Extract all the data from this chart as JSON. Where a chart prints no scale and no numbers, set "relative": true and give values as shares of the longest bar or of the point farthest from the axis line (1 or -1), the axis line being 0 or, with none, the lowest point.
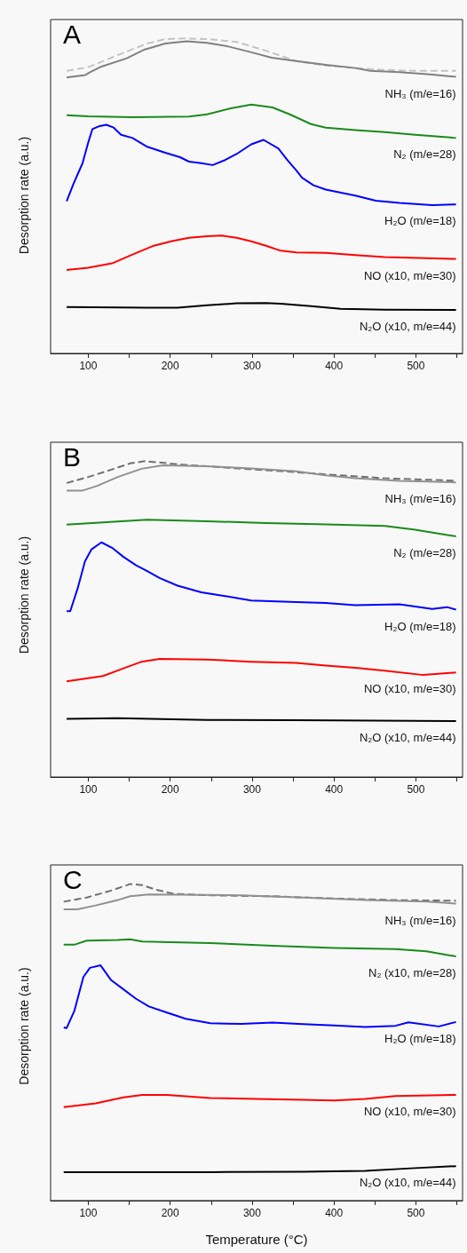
{
  "chart_data": [
    {
      "type": "line",
      "title": "A",
      "ylabel": "Desorption rate (a.u.)",
      "relative": true,
      "xlim": [
        54,
        557
      ],
      "xticks": [
        100,
        {
          "value": 150,
          "label": null
        },
        200,
        {
          "value": 250,
          "label": null
        },
        300,
        {
          "value": 350,
          "label": null
        },
        400,
        {
          "value": 450,
          "label": null
        },
        500,
        {
          "value": 550,
          "label": null
        }
      ],
      "grid": false,
      "marker": "none",
      "line_style": "solid",
      "series": [
        {
          "color": "#c4c4c4",
          "line_style": "dashed",
          "x": [
            73.6,
            100,
            136,
            172,
            194,
            216,
            245,
            281,
            317,
            354,
            390,
            426,
            462,
            499,
            549
          ],
          "values": [
            0.897,
            0.909,
            0.947,
            0.984,
            0.998,
            1.0,
            0.998,
            0.989,
            0.961,
            0.928,
            0.914,
            0.906,
            0.9,
            0.897,
            0.897
          ]
        },
        {
          "name": "NH₃ (m/e=16)",
          "color": "#808080",
          "x": [
            73.6,
            96.4,
            103.6,
            114.5,
            147,
            169,
            194,
            220,
            245,
            270,
            299,
            324,
            354,
            390,
            426,
            444,
            480,
            517,
            549
          ],
          "values": [
            0.876,
            0.884,
            0.895,
            0.909,
            0.937,
            0.965,
            0.984,
            0.991,
            0.986,
            0.975,
            0.956,
            0.939,
            0.928,
            0.916,
            0.906,
            0.897,
            0.893,
            0.886,
            0.878
          ]
        },
        {
          "name": "N₂ (m/e=28)",
          "color": "#1a8a1a",
          "x": [
            73.6,
            100,
            154,
            223,
            245,
            274,
            299,
            325,
            346,
            372,
            390,
            426,
            462,
            499,
            549
          ],
          "values": [
            0.756,
            0.753,
            0.75,
            0.752,
            0.759,
            0.778,
            0.79,
            0.781,
            0.759,
            0.728,
            0.717,
            0.709,
            0.703,
            0.694,
            0.684
          ]
        },
        {
          "name": "H₂O (m/e=18)",
          "color": "#0000ff",
          "x": [
            73.6,
            82,
            93,
            100,
            105,
            114,
            122,
            131,
            140,
            154,
            172,
            194,
            212,
            223,
            238,
            252,
            267,
            281,
            299,
            314,
            332,
            343,
            354,
            361,
            375,
            390,
            426,
            451,
            480,
            520,
            549
          ],
          "values": [
            0.483,
            0.539,
            0.604,
            0.67,
            0.712,
            0.722,
            0.726,
            0.717,
            0.694,
            0.684,
            0.656,
            0.637,
            0.623,
            0.609,
            0.604,
            0.598,
            0.614,
            0.633,
            0.664,
            0.678,
            0.651,
            0.614,
            0.581,
            0.558,
            0.534,
            0.52,
            0.501,
            0.485,
            0.478,
            0.471,
            0.473
          ]
        },
        {
          "name": "NO (x10, m/e=30)",
          "color": "#ff0000",
          "x": [
            73.6,
            100,
            129,
            154,
            180,
            201,
            223,
            245,
            263,
            281,
            299,
            317,
            335,
            354,
            390,
            426,
            462,
            549
          ],
          "values": [
            0.265,
            0.272,
            0.286,
            0.314,
            0.342,
            0.356,
            0.367,
            0.372,
            0.374,
            0.367,
            0.356,
            0.342,
            0.326,
            0.321,
            0.319,
            0.312,
            0.306,
            0.3
          ]
        },
        {
          "name": "N₂O (x10, m/e=44)",
          "color": "#000000",
          "x": [
            73.6,
            172,
            209,
            245,
            281,
            317,
            335,
            372,
            408,
            462,
            549
          ],
          "values": [
            0.147,
            0.145,
            0.145,
            0.153,
            0.159,
            0.16,
            0.158,
            0.15,
            0.142,
            0.139,
            0.138
          ]
        }
      ]
    },
    {
      "type": "line",
      "title": "B",
      "ylabel": "Desorption rate (a.u.)",
      "relative": true,
      "xlim": [
        54,
        557
      ],
      "xticks": [
        100,
        {
          "value": 150,
          "label": null
        },
        200,
        {
          "value": 250,
          "label": null
        },
        300,
        {
          "value": 350,
          "label": null
        },
        400,
        {
          "value": 450,
          "label": null
        },
        500,
        {
          "value": 550,
          "label": null
        }
      ],
      "grid": false,
      "marker": "none",
      "line_style": "solid",
      "series": [
        {
          "color": "#707070",
          "line_style": "dashed",
          "x": [
            73.6,
            100,
            129,
            151,
            169,
            187,
            209,
            245,
            299,
            354,
            408,
            462,
            517,
            549
          ],
          "values": [
            0.931,
            0.95,
            0.974,
            0.993,
            1.0,
            0.996,
            0.99,
            0.984,
            0.974,
            0.965,
            0.955,
            0.946,
            0.941,
            0.938
          ]
        },
        {
          "name": "NH₃ (m/e=16)",
          "color": "#909090",
          "x": [
            73.6,
            93,
            111,
            136,
            165,
            191,
            245,
            299,
            354,
            390,
            426,
            480,
            549
          ],
          "values": [
            0.907,
            0.907,
            0.922,
            0.95,
            0.976,
            0.987,
            0.984,
            0.977,
            0.968,
            0.955,
            0.946,
            0.938,
            0.933
          ]
        },
        {
          "name": "N₂ (m/e=28)",
          "color": "#1a8a1a",
          "x": [
            73.6,
            136,
            172,
            245,
            317,
            390,
            462,
            499,
            549
          ],
          "values": [
            0.799,
            0.809,
            0.815,
            0.81,
            0.804,
            0.8,
            0.795,
            0.783,
            0.762
          ]
        },
        {
          "name": "H₂O (m/e=18)",
          "color": "#0000ff",
          "x": [
            73.6,
            78,
            87,
            96,
            104,
            116,
            129,
            143,
            158,
            172,
            187,
            209,
            238,
            267,
            299,
            354,
            390,
            426,
            480,
            520,
            538,
            549
          ],
          "values": [
            0.525,
            0.525,
            0.597,
            0.683,
            0.721,
            0.743,
            0.726,
            0.697,
            0.671,
            0.652,
            0.63,
            0.606,
            0.585,
            0.573,
            0.559,
            0.554,
            0.551,
            0.544,
            0.547,
            0.532,
            0.538,
            0.53
          ]
        },
        {
          "name": "NO (x10, m/e=30)",
          "color": "#ff0000",
          "x": [
            73.6,
            118,
            143,
            165,
            187,
            245,
            299,
            354,
            390,
            426,
            462,
            509,
            549
          ],
          "values": [
            0.303,
            0.32,
            0.344,
            0.365,
            0.374,
            0.372,
            0.365,
            0.361,
            0.353,
            0.346,
            0.337,
            0.323,
            0.331
          ]
        },
        {
          "name": "N₂O (x10, m/e=44)",
          "color": "#000000",
          "x": [
            73.6,
            136,
            245,
            354,
            549
          ],
          "values": [
            0.184,
            0.186,
            0.181,
            0.18,
            0.177
          ]
        }
      ]
    },
    {
      "type": "line",
      "title": "C",
      "xlabel": "Temperature (°C)",
      "ylabel": "Desorption rate (a.u.)",
      "relative": true,
      "xlim": [
        54,
        557
      ],
      "xticks": [
        100,
        {
          "value": 150,
          "label": null
        },
        200,
        {
          "value": 250,
          "label": null
        },
        300,
        {
          "value": 350,
          "label": null
        },
        400,
        {
          "value": 450,
          "label": null
        },
        500,
        {
          "value": 550,
          "label": null
        }
      ],
      "grid": false,
      "marker": "none",
      "line_style": "solid",
      "series": [
        {
          "color": "#707070",
          "line_style": "dashed",
          "x": [
            70,
            98,
            128,
            147,
            151,
            166,
            181,
            204,
            249,
            325,
            400,
            475,
            549
          ],
          "values": [
            0.944,
            0.957,
            0.979,
            0.996,
            1.0,
            0.996,
            0.983,
            0.969,
            0.964,
            0.961,
            0.954,
            0.949,
            0.947
          ]
        },
        {
          "name": "NH₃ (m/e=16)",
          "color": "#909090",
          "x": [
            70,
            86.8,
            109,
            136,
            151,
            174,
            211,
            287,
            362,
            438,
            513,
            549
          ],
          "values": [
            0.92,
            0.92,
            0.932,
            0.949,
            0.961,
            0.967,
            0.966,
            0.964,
            0.957,
            0.949,
            0.944,
            0.938
          ]
        },
        {
          "name": "N₂ (x10, m/e=28)",
          "color": "#1a8a1a",
          "x": [
            70,
            83,
            98,
            136,
            151,
            166,
            249,
            325,
            400,
            475,
            513,
            549
          ],
          "values": [
            0.808,
            0.808,
            0.821,
            0.823,
            0.825,
            0.818,
            0.813,
            0.805,
            0.798,
            0.794,
            0.787,
            0.771
          ]
        },
        {
          "name": "H₂O (m/e=18)",
          "color": "#0000ff",
          "x": [
            70,
            73.6,
            83,
            94,
            102,
            115,
            128,
            143,
            158,
            174,
            196,
            219,
            249,
            287,
            325,
            362,
            400,
            438,
            475,
            491,
            528,
            549
          ],
          "values": [
            0.547,
            0.545,
            0.599,
            0.706,
            0.735,
            0.743,
            0.696,
            0.667,
            0.638,
            0.613,
            0.594,
            0.574,
            0.56,
            0.558,
            0.562,
            0.557,
            0.553,
            0.548,
            0.552,
            0.563,
            0.55,
            0.564
          ]
        },
        {
          "name": "NO (x10, m/e=30)",
          "color": "#ff0000",
          "x": [
            70,
            109,
            143,
            166,
            196,
            249,
            306,
            362,
            400,
            438,
            475,
            549
          ],
          "values": [
            0.295,
            0.307,
            0.326,
            0.334,
            0.334,
            0.324,
            0.321,
            0.318,
            0.316,
            0.321,
            0.33,
            0.334
          ]
        },
        {
          "name": "N₂O (x10, m/e=44)",
          "color": "#000000",
          "x": [
            70,
            249,
            362,
            438,
            494,
            549
          ],
          "values": [
            0.09,
            0.09,
            0.091,
            0.094,
            0.102,
            0.109
          ]
        }
      ]
    }
  ]
}
